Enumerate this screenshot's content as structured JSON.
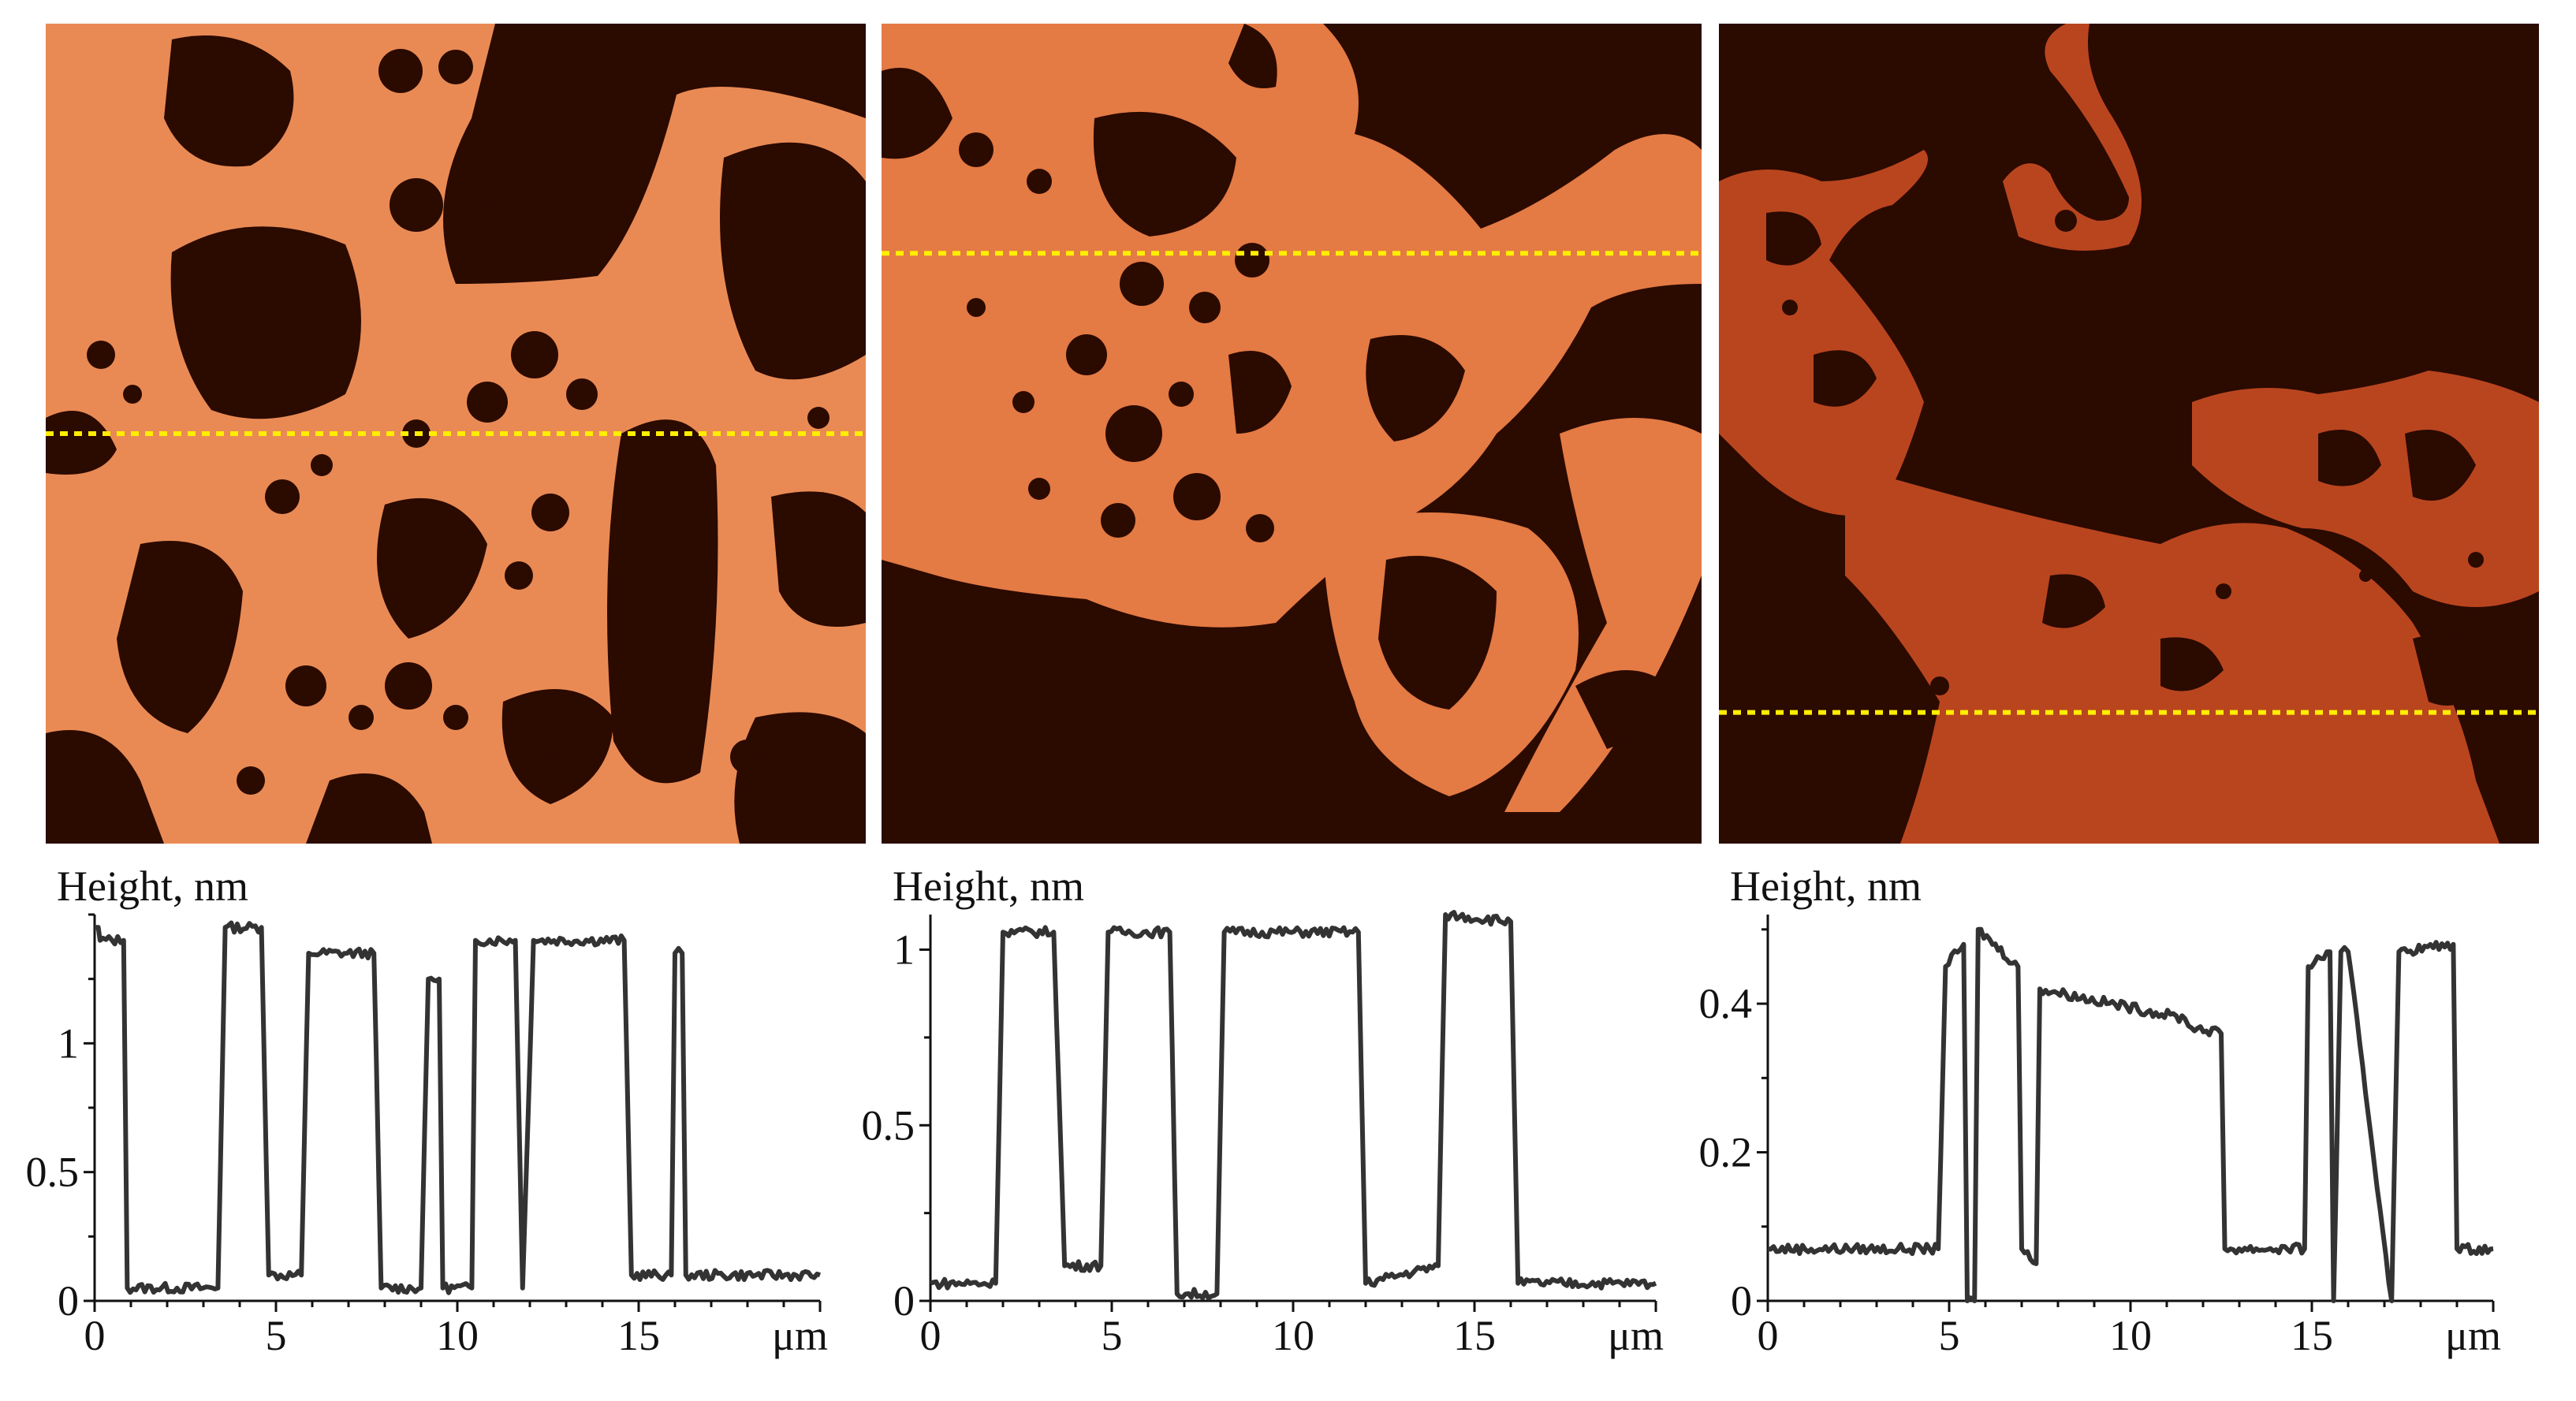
{
  "colors": {
    "substrate": "#2b0a00",
    "film_left": "#e98a55",
    "film_middle": "#e47a44",
    "film_right": "#b9451f",
    "scan_line": "#ffee00",
    "trace": "#333333"
  },
  "chart_data": [
    {
      "type": "line",
      "ylabel": "Height, nm",
      "xunit": "μm",
      "xlim": [
        0,
        20
      ],
      "ylim": [
        0,
        1.5
      ],
      "xticks": [
        "0",
        "5",
        "10",
        "15"
      ],
      "yticks": [
        "0",
        "0.5",
        "1"
      ],
      "ytick_values": [
        0,
        0.5,
        1
      ],
      "scan_line_fraction": 0.5,
      "series": [
        {
          "x": [
            0,
            0.1,
            0.15,
            0.8,
            0.9,
            3.4,
            3.6,
            4.6,
            4.8,
            5.7,
            5.9,
            7.7,
            7.9,
            9,
            9.2,
            9.5,
            9.6,
            10.4,
            10.5,
            11.6,
            11.8,
            12.1,
            14.6,
            14.8,
            15.9,
            16.0,
            16.2,
            16.3,
            20
          ],
          "y": [
            1.45,
            1.45,
            1.4,
            1.4,
            0.05,
            0.05,
            1.45,
            1.45,
            0.1,
            0.1,
            1.35,
            1.35,
            0.05,
            0.05,
            1.25,
            1.25,
            0.05,
            0.05,
            1.4,
            1.4,
            0.05,
            1.4,
            1.4,
            0.1,
            0.1,
            1.35,
            1.35,
            0.1,
            0.1
          ]
        }
      ]
    },
    {
      "type": "line",
      "ylabel": "Height, nm",
      "xunit": "μm",
      "xlim": [
        0,
        20
      ],
      "ylim": [
        0,
        1.1
      ],
      "xticks": [
        "0",
        "5",
        "10",
        "15"
      ],
      "yticks": [
        "0",
        "0.5",
        "1"
      ],
      "ytick_values": [
        0,
        0.5,
        1
      ],
      "scan_line_fraction": 0.28,
      "series": [
        {
          "x": [
            0,
            1.8,
            2.0,
            3.4,
            3.7,
            4.7,
            4.9,
            6.6,
            6.8,
            7.9,
            8.1,
            11.8,
            12.0,
            14.0,
            14.2,
            16.0,
            16.2,
            20
          ],
          "y": [
            0.05,
            0.05,
            1.05,
            1.05,
            0.1,
            0.1,
            1.05,
            1.05,
            0.02,
            0.02,
            1.05,
            1.05,
            0.05,
            0.1,
            1.1,
            1.08,
            0.05,
            0.05
          ]
        }
      ]
    },
    {
      "type": "line",
      "ylabel": "Height, nm",
      "xunit": "μm",
      "xlim": [
        0,
        20
      ],
      "ylim": [
        0,
        0.52
      ],
      "xticks": [
        "0",
        "5",
        "10",
        "15"
      ],
      "yticks": [
        "0",
        "0.2",
        "0.4"
      ],
      "ytick_values": [
        0,
        0.2,
        0.4
      ],
      "scan_line_fraction": 0.84,
      "series": [
        {
          "x": [
            0,
            4.7,
            4.9,
            5.4,
            5.5,
            5.7,
            5.8,
            6.9,
            7.0,
            7.4,
            7.5,
            11.5,
            11.6,
            12.5,
            12.6,
            14.8,
            14.9,
            15.5,
            15.6,
            15.8,
            16.0,
            17.2,
            17.4,
            18.9,
            19.0,
            20
          ],
          "y": [
            0.07,
            0.07,
            0.45,
            0.48,
            0.0,
            0.0,
            0.5,
            0.45,
            0.07,
            0.05,
            0.42,
            0.38,
            0.37,
            0.36,
            0.07,
            0.07,
            0.45,
            0.47,
            0.0,
            0.47,
            0.47,
            0.0,
            0.47,
            0.48,
            0.07,
            0.07
          ]
        }
      ]
    }
  ]
}
